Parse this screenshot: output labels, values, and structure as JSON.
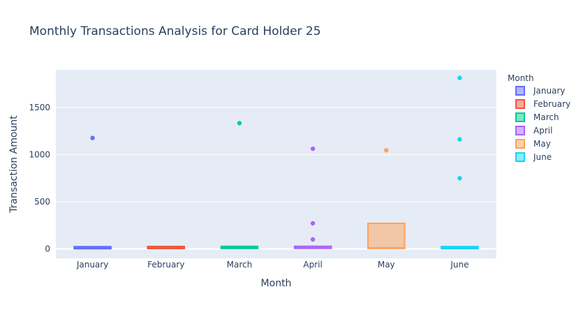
{
  "chart_data": {
    "type": "box",
    "title": "Monthly Transactions Analysis for Card Holder 25",
    "xlabel": "Month",
    "ylabel": "Transaction Amount",
    "categories": [
      "January",
      "February",
      "March",
      "April",
      "May",
      "June"
    ],
    "ylim": [
      -100,
      1900
    ],
    "yticks": [
      0,
      500,
      1000,
      1500
    ],
    "ytick_labels": [
      "0",
      "500",
      "1000",
      "1500"
    ],
    "grid": true,
    "legend": {
      "title": "Month",
      "placement": "right"
    },
    "series": [
      {
        "name": "January",
        "color": "#636efa",
        "box": {
          "q1": 2,
          "median": 10,
          "q3": 18,
          "lower": 1,
          "upper": 20
        },
        "outliers": [
          1177
        ]
      },
      {
        "name": "February",
        "color": "#ef553b",
        "box": {
          "q1": 4,
          "median": 10,
          "q3": 16,
          "lower": 2,
          "upper": 18
        },
        "outliers": []
      },
      {
        "name": "March",
        "color": "#00cc96",
        "box": {
          "q1": 5,
          "median": 14,
          "q3": 22,
          "lower": 3,
          "upper": 25
        },
        "outliers": [
          1334
        ]
      },
      {
        "name": "April",
        "color": "#ab63fa",
        "box": {
          "q1": 6,
          "median": 14,
          "q3": 20,
          "lower": 3,
          "upper": 22
        },
        "outliers": [
          1063,
          272,
          101
        ]
      },
      {
        "name": "May",
        "color": "#ffa15a",
        "box": {
          "q1": 5,
          "median": 12,
          "q3": 272,
          "lower": 2,
          "upper": 275
        },
        "outliers": [
          1046
        ]
      },
      {
        "name": "June",
        "color": "#19d3f3",
        "box": {
          "q1": 3,
          "median": 12,
          "q3": 18,
          "lower": 1,
          "upper": 20
        },
        "outliers": [
          1814,
          1162,
          750
        ]
      }
    ]
  }
}
